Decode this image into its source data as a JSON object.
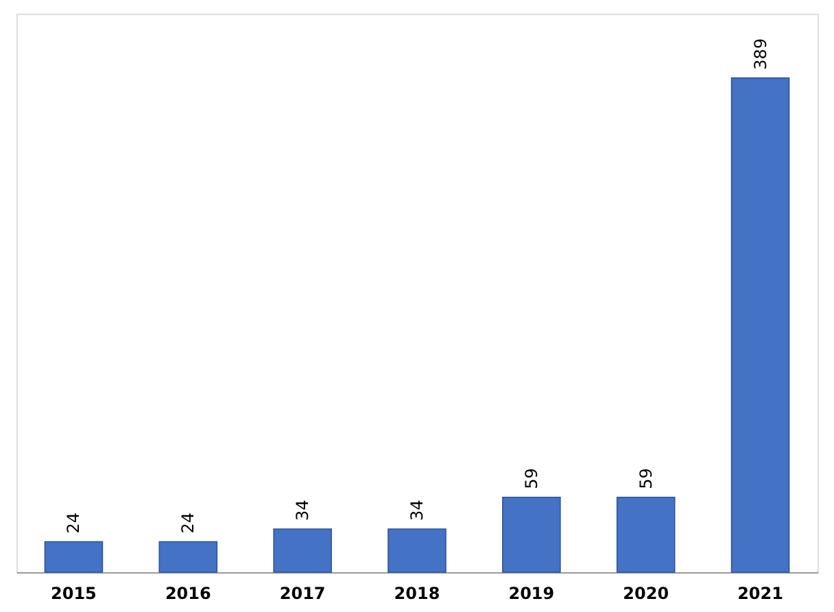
{
  "chart_data": {
    "type": "bar",
    "categories": [
      "2015",
      "2016",
      "2017",
      "2018",
      "2019",
      "2020",
      "2021"
    ],
    "values": [
      24,
      24,
      34,
      34,
      59,
      59,
      389
    ],
    "color": "#4472c4",
    "data_labels": true
  }
}
